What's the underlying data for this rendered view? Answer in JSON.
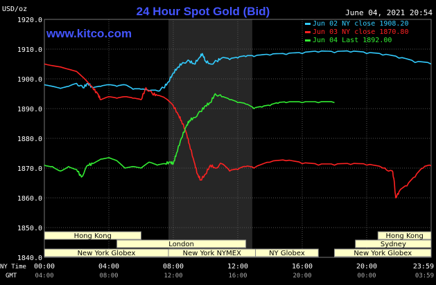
{
  "chart_data": {
    "type": "line",
    "title": "24 Hour Spot Gold (Bid)",
    "unit_label": "USD/oz",
    "source_label": "www.kitco.com",
    "timestamp": "June 04, 2021 20:54",
    "ylim": [
      1840,
      1920
    ],
    "yticks": [
      "1920.0",
      "1910.0",
      "1900.0",
      "1890.0",
      "1880.0",
      "1870.0",
      "1860.0",
      "1850.0",
      "1840.0"
    ],
    "x_range_hours": [
      0,
      24
    ],
    "x_row_label": "NY Time",
    "x_ticks": [
      "00:00",
      "04:00",
      "08:00",
      "12:00",
      "16:00",
      "20:00",
      "23:59"
    ],
    "gmt_row_label": "GMT",
    "gmt_ticks": [
      "04:00",
      "08:00",
      "12:00",
      "16:00",
      "20:00",
      "00:00",
      "03:59"
    ],
    "highlight_range_hours": [
      7.7,
      12.9
    ],
    "series": [
      {
        "name": "Jun 02 NY close 1908.20",
        "color": "#33ccff",
        "points": [
          [
            0,
            1898
          ],
          [
            0.5,
            1897.5
          ],
          [
            1,
            1896.8
          ],
          [
            1.5,
            1897.5
          ],
          [
            2,
            1898.5
          ],
          [
            2.4,
            1897
          ],
          [
            2.7,
            1898.5
          ],
          [
            3,
            1897
          ],
          [
            3.5,
            1897.5
          ],
          [
            4,
            1898
          ],
          [
            4.5,
            1897.5
          ],
          [
            5,
            1898
          ],
          [
            5.5,
            1896.5
          ],
          [
            6,
            1896.5
          ],
          [
            6.5,
            1896
          ],
          [
            7,
            1896
          ],
          [
            7.4,
            1897
          ],
          [
            7.7,
            1899
          ],
          [
            8,
            1902
          ],
          [
            8.3,
            1904
          ],
          [
            8.6,
            1905.5
          ],
          [
            9,
            1906
          ],
          [
            9.3,
            1905
          ],
          [
            9.6,
            1907
          ],
          [
            9.8,
            1908.5
          ],
          [
            10,
            1906
          ],
          [
            10.3,
            1905
          ],
          [
            10.7,
            1906
          ],
          [
            11,
            1907
          ],
          [
            11.5,
            1906.5
          ],
          [
            12,
            1907
          ],
          [
            12.5,
            1907.5
          ],
          [
            13,
            1907.5
          ],
          [
            14,
            1908
          ],
          [
            15,
            1908.2
          ],
          [
            16,
            1908.5
          ],
          [
            17,
            1909
          ],
          [
            18,
            1908.8
          ],
          [
            19,
            1909
          ],
          [
            20,
            1908.5
          ],
          [
            21,
            1908
          ],
          [
            22,
            1907
          ],
          [
            23,
            1905.5
          ],
          [
            23.99,
            1905
          ]
        ]
      },
      {
        "name": "Jun 03 NY close 1870.80",
        "color": "#ff2222",
        "points": [
          [
            0,
            1905
          ],
          [
            1,
            1904
          ],
          [
            2,
            1902.5
          ],
          [
            2.5,
            1900
          ],
          [
            3,
            1897
          ],
          [
            3.3,
            1895
          ],
          [
            3.5,
            1893
          ],
          [
            4,
            1894
          ],
          [
            4.5,
            1893.5
          ],
          [
            5,
            1894
          ],
          [
            5.5,
            1893.5
          ],
          [
            6,
            1893
          ],
          [
            6.3,
            1897
          ],
          [
            6.7,
            1895
          ],
          [
            7,
            1894.5
          ],
          [
            7.5,
            1893.5
          ],
          [
            8,
            1891
          ],
          [
            8.3,
            1888
          ],
          [
            8.5,
            1886
          ],
          [
            8.8,
            1882
          ],
          [
            9,
            1878
          ],
          [
            9.3,
            1872
          ],
          [
            9.5,
            1868
          ],
          [
            9.7,
            1866
          ],
          [
            10,
            1868
          ],
          [
            10.3,
            1871
          ],
          [
            10.6,
            1870
          ],
          [
            11,
            1871.5
          ],
          [
            11.5,
            1869
          ],
          [
            12,
            1869.5
          ],
          [
            12.5,
            1870.5
          ],
          [
            13,
            1870
          ],
          [
            14,
            1872
          ],
          [
            15,
            1872.5
          ],
          [
            16,
            1871.5
          ],
          [
            17,
            1871
          ],
          [
            18,
            1871
          ],
          [
            19,
            1871.2
          ],
          [
            20,
            1871
          ],
          [
            21,
            1870
          ],
          [
            21.6,
            1869
          ],
          [
            21.7,
            1866
          ],
          [
            21.8,
            1860
          ],
          [
            22,
            1862
          ],
          [
            22.5,
            1864
          ],
          [
            23,
            1867
          ],
          [
            23.5,
            1870
          ],
          [
            23.99,
            1870.8
          ]
        ]
      },
      {
        "name": "Jun 04 Last 1892.00",
        "color": "#33ee33",
        "points": [
          [
            0,
            1871
          ],
          [
            0.5,
            1870.5
          ],
          [
            1,
            1869
          ],
          [
            1.5,
            1870.5
          ],
          [
            2,
            1869.5
          ],
          [
            2.3,
            1867
          ],
          [
            2.7,
            1871
          ],
          [
            3,
            1871.5
          ],
          [
            3.5,
            1873
          ],
          [
            4,
            1873.5
          ],
          [
            4.5,
            1872.5
          ],
          [
            5,
            1870
          ],
          [
            5.5,
            1870.5
          ],
          [
            6,
            1870
          ],
          [
            6.5,
            1872
          ],
          [
            7,
            1871
          ],
          [
            7.5,
            1871.5
          ],
          [
            7.8,
            1872
          ],
          [
            8,
            1871.5
          ],
          [
            8.2,
            1875
          ],
          [
            8.5,
            1880
          ],
          [
            8.8,
            1884
          ],
          [
            9,
            1886
          ],
          [
            9.3,
            1887
          ],
          [
            9.7,
            1889
          ],
          [
            10,
            1891
          ],
          [
            10.3,
            1892
          ],
          [
            10.6,
            1895
          ],
          [
            11,
            1894
          ],
          [
            11.5,
            1893
          ],
          [
            12,
            1892
          ],
          [
            12.5,
            1891.5
          ],
          [
            13,
            1890
          ],
          [
            13.5,
            1890.5
          ],
          [
            14,
            1891
          ],
          [
            14.5,
            1891.8
          ],
          [
            15,
            1892
          ],
          [
            16,
            1892
          ],
          [
            17,
            1892
          ],
          [
            18,
            1892
          ]
        ]
      }
    ],
    "markets": [
      {
        "label": "Hong Kong",
        "start": 0,
        "end": 6,
        "row": 0
      },
      {
        "label": "London",
        "start": 4.5,
        "end": 12.5,
        "row": 1
      },
      {
        "label": "New York Globex",
        "start": 0,
        "end": 7.7,
        "row": 2
      },
      {
        "label": "New York NYMEX",
        "start": 7.7,
        "end": 13.1,
        "row": 2
      },
      {
        "label": "NY Globex",
        "start": 13.1,
        "end": 17,
        "row": 2
      },
      {
        "label": "Hong Kong",
        "start": 20.7,
        "end": 24,
        "row": 0
      },
      {
        "label": "Sydney",
        "start": 19.3,
        "end": 24,
        "row": 1
      },
      {
        "label": "New York Globex",
        "start": 18,
        "end": 24,
        "row": 2
      }
    ],
    "colors": {
      "background": "#000000",
      "plot_background": "#000000",
      "highlight": "#262626",
      "grid": "#555555",
      "title": "#4455ff",
      "text": "#ffffff",
      "market_fill": "#ffffc8",
      "market_border": "#888888"
    }
  }
}
